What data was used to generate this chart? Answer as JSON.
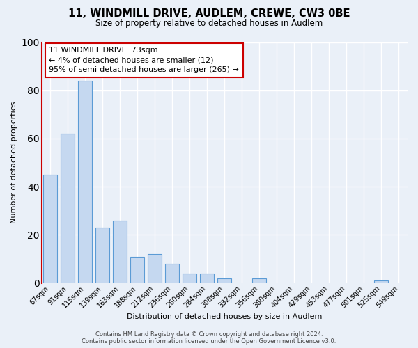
{
  "title": "11, WINDMILL DRIVE, AUDLEM, CREWE, CW3 0BE",
  "subtitle": "Size of property relative to detached houses in Audlem",
  "xlabel": "Distribution of detached houses by size in Audlem",
  "ylabel": "Number of detached properties",
  "bar_color": "#c5d8f0",
  "bar_edge_color": "#5b9bd5",
  "background_color": "#eaf0f8",
  "grid_color": "#ffffff",
  "annotation_box_color": "#cc0000",
  "annotation_line1": "11 WINDMILL DRIVE: 73sqm",
  "annotation_line2": "← 4% of detached houses are smaller (12)",
  "annotation_line3": "95% of semi-detached houses are larger (265) →",
  "categories": [
    "67sqm",
    "91sqm",
    "115sqm",
    "139sqm",
    "163sqm",
    "188sqm",
    "212sqm",
    "236sqm",
    "260sqm",
    "284sqm",
    "308sqm",
    "332sqm",
    "356sqm",
    "380sqm",
    "404sqm",
    "429sqm",
    "453sqm",
    "477sqm",
    "501sqm",
    "525sqm",
    "549sqm"
  ],
  "values": [
    45,
    62,
    84,
    23,
    26,
    11,
    12,
    8,
    4,
    4,
    2,
    0,
    2,
    0,
    0,
    0,
    0,
    0,
    0,
    1,
    0
  ],
  "ylim": [
    0,
    100
  ],
  "red_line_x": -0.5,
  "footer_line1": "Contains HM Land Registry data © Crown copyright and database right 2024.",
  "footer_line2": "Contains public sector information licensed under the Open Government Licence v3.0."
}
